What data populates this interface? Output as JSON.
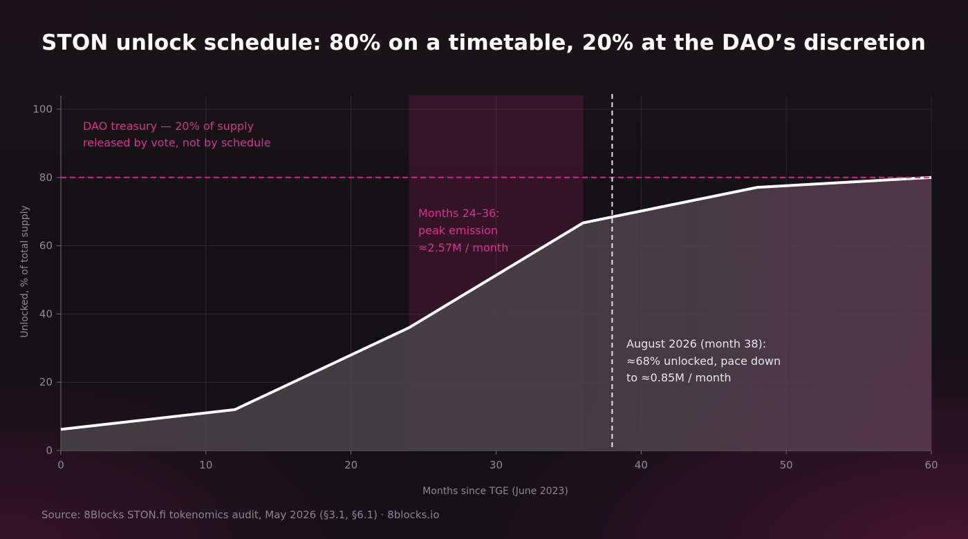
{
  "title": "STON unlock schedule: 80% on a timetable, 20% at the DAO’s discretion",
  "source": "Source: 8Blocks STON.fi tokenomics audit, May 2026 (§3.1, §6.1) · 8blocks.io",
  "chart_data": {
    "type": "area",
    "title": "STON unlock schedule: 80% on a timetable, 20% at the DAO’s discretion",
    "xlabel": "Months since TGE (June 2023)",
    "ylabel": "Unlocked, % of total supply",
    "xlim": [
      0,
      60
    ],
    "ylim": [
      0,
      100
    ],
    "xticks": [
      0,
      10,
      20,
      30,
      40,
      50,
      60
    ],
    "yticks": [
      0,
      20,
      40,
      60,
      80,
      100
    ],
    "grid": true,
    "series": [
      {
        "x": [
          0,
          12,
          24,
          36,
          48,
          60
        ],
        "y": [
          6.2,
          12,
          36,
          66.7,
          77.1,
          80
        ]
      }
    ],
    "reference_line": {
      "y": 80,
      "style": "dashed"
    },
    "marker_line": {
      "x": 38,
      "style": "dashed"
    },
    "highlight_band": {
      "x_start": 24,
      "x_end": 36
    },
    "annotations": {
      "dao": [
        "DAO treasury — 20% of supply",
        "released by vote, not by schedule"
      ],
      "peak": [
        "Months 24–36:",
        "peak emission",
        "≈2.57M / month"
      ],
      "current": [
        "August 2026 (month 38):",
        "≈68% unlocked, pace down",
        "to ≈0.85M / month"
      ]
    },
    "colors": {
      "line": "#ffffff",
      "area": "#4a4549",
      "accent": "#e0237f",
      "grid": "#2e2a31",
      "tick": "#8e8a92"
    }
  }
}
